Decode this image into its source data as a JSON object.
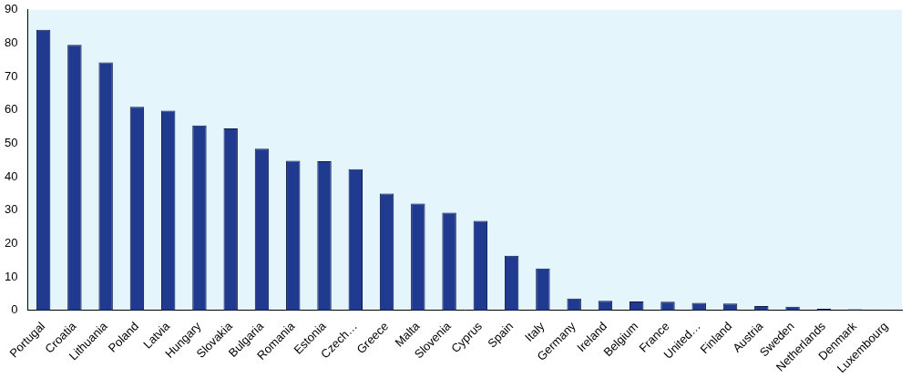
{
  "chart_data": {
    "type": "bar",
    "categories": [
      "Portugal",
      "Croatia",
      "Lithuania",
      "Poland",
      "Latvia",
      "Hungary",
      "Slovakia",
      "Bulgaria",
      "Romania",
      "Estonia",
      "Czech…",
      "Greece",
      "Malta",
      "Slovenia",
      "Cyprus",
      "Spain",
      "Italy",
      "Germany",
      "Ireland",
      "Belgium",
      "France",
      "United…",
      "Finland",
      "Austria",
      "Sweden",
      "Netherlands",
      "Denmark",
      "Luxembourg"
    ],
    "values": [
      84,
      79.5,
      74.3,
      61,
      59.8,
      55.4,
      54.5,
      48.4,
      44.8,
      44.7,
      42.3,
      35,
      32,
      29.3,
      26.8,
      16.4,
      12.6,
      3.6,
      2.9,
      2.7,
      2.6,
      2.3,
      2.1,
      1.3,
      1.1,
      0.5,
      0.4,
      0.2
    ],
    "color": "#1f3a8f",
    "ylim": [
      0,
      90
    ],
    "yticks": [
      0,
      10,
      20,
      30,
      40,
      50,
      60,
      70,
      80,
      90
    ],
    "grid": false
  }
}
